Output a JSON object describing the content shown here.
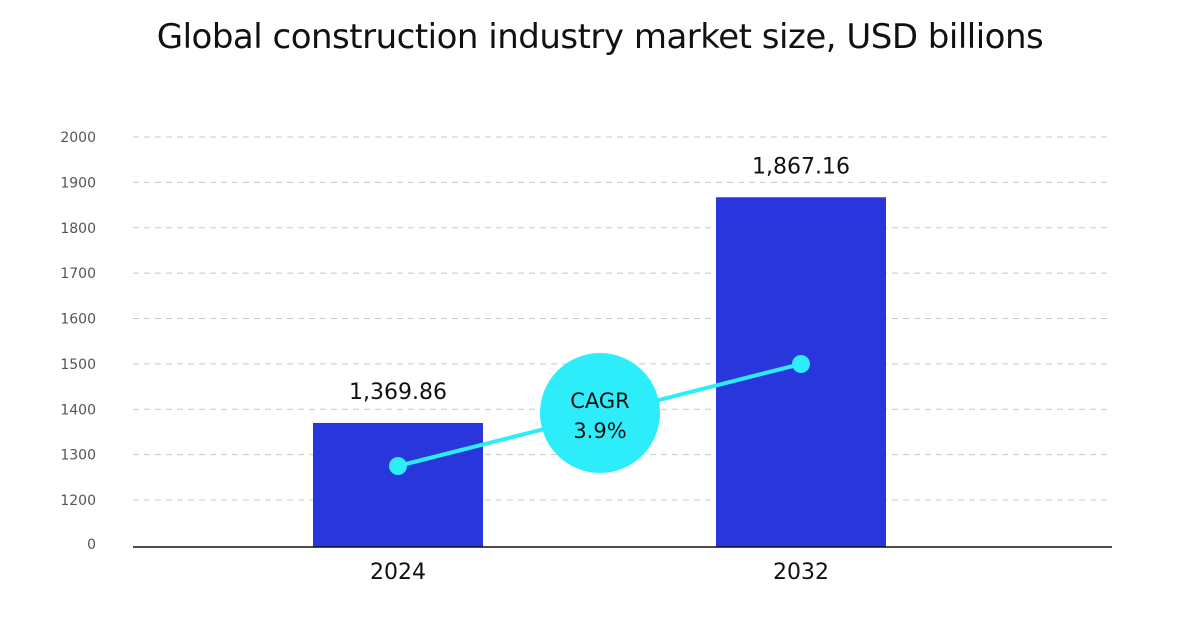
{
  "chart_data": {
    "type": "bar",
    "title": "Global construction industry market size, USD billions",
    "categories": [
      "2024",
      "2032"
    ],
    "values": [
      1369.86,
      1867.16
    ],
    "value_labels": [
      "1,369.86",
      "1,867.16"
    ],
    "y_ticks": [
      0,
      1200,
      1300,
      1400,
      1500,
      1600,
      1700,
      1800,
      1900,
      2000
    ],
    "y_axis_break": true,
    "ylim": [
      1150,
      2000
    ],
    "grid": true,
    "xlabel": "",
    "ylabel": "",
    "annotation": {
      "line1": "CAGR",
      "line2": "3.9%",
      "value": 3.9
    },
    "colors": {
      "bar": "#2936DB",
      "accent": "#2EEDFA",
      "grid": "#C8C8C8",
      "axis": "#111111"
    }
  }
}
